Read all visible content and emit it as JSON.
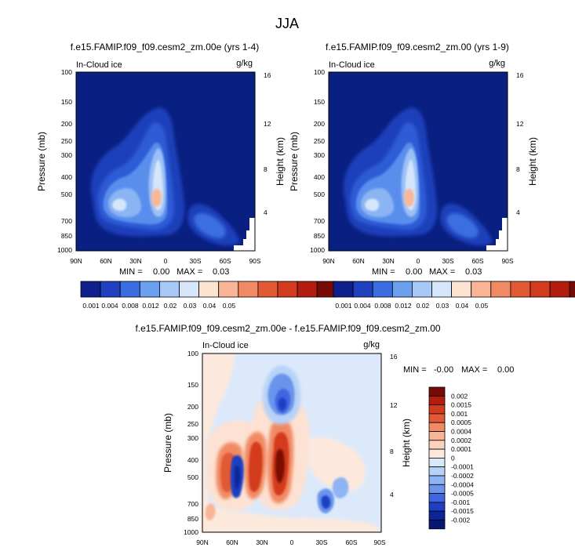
{
  "figure": {
    "title": "JJA"
  },
  "panels": [
    {
      "title": "f.e15.FAMIP.f09_f09.cesm2_zm.00e (yrs 1-4)",
      "field_label": "In-Cloud ice",
      "units": "g/kg",
      "ylabel_left": "Pressure (mb)",
      "ylabel_right": "Height (km)",
      "min_label": "MIN =",
      "min_value": "0.00",
      "max_label": "MAX =",
      "max_value": "0.03"
    },
    {
      "title": "f.e15.FAMIP.f09_f09.cesm2_zm.00 (yrs 1-9)",
      "field_label": "In-Cloud ice",
      "units": "g/kg",
      "ylabel_left": "Pressure (mb)",
      "ylabel_right": "Height (km)",
      "min_label": "MIN =",
      "min_value": "0.00",
      "max_label": "MAX =",
      "max_value": "0.03"
    },
    {
      "title": "f.e15.FAMIP.f09_f09.cesm2_zm.00e - f.e15.FAMIP.f09_f09.cesm2_zm.00",
      "field_label": "In-Cloud ice",
      "units": "g/kg",
      "ylabel_left": "Pressure (mb)",
      "ylabel_right": "Height (km)",
      "min_label": "MIN =",
      "min_value": "-0.00",
      "max_label": "MAX =",
      "max_value": "0.00"
    }
  ],
  "chart_data": [
    {
      "type": "heatmap",
      "title": "f.e15.FAMIP.f09_f09.cesm2_zm.00e (yrs 1-4)",
      "variable": "In-Cloud ice",
      "units": "g/kg",
      "x_ticks": [
        "90N",
        "60N",
        "30N",
        "0",
        "30S",
        "60S",
        "90S"
      ],
      "x_values": [
        90,
        60,
        30,
        0,
        -30,
        -60,
        -90
      ],
      "y_ticks": [
        "100",
        "150",
        "200",
        "250",
        "300",
        "400",
        "500",
        "700",
        "850",
        "1000"
      ],
      "y_values": [
        100,
        150,
        200,
        250,
        300,
        400,
        500,
        700,
        850,
        1000
      ],
      "y_scale": "log",
      "ylim": [
        1000,
        100
      ],
      "y2_ticks": [
        "4",
        "8",
        "12",
        "16"
      ],
      "y2_values": [
        4,
        8,
        12,
        16
      ],
      "xlabel": "",
      "ylabel": "Pressure (mb)",
      "y2label": "Height (km)",
      "min": 0.0,
      "max": 0.03,
      "colorbar_levels": [
        "0.001",
        "0.004",
        "0.008",
        "0.012",
        "0.02",
        "0.03",
        "0.04",
        "0.05"
      ],
      "colorbar_colors": [
        "#0f1f8c",
        "#2040c0",
        "#3a6ee0",
        "#6b9ff0",
        "#a8c8f8",
        "#d6e6fa",
        "#fde4d2",
        "#f9b596",
        "#f08a64",
        "#e25a35",
        "#d33b1f",
        "#b11e10",
        "#7a0a05"
      ]
    },
    {
      "type": "heatmap",
      "title": "f.e15.FAMIP.f09_f09.cesm2_zm.00 (yrs 1-9)",
      "variable": "In-Cloud ice",
      "units": "g/kg",
      "x_ticks": [
        "90N",
        "60N",
        "30N",
        "0",
        "30S",
        "60S",
        "90S"
      ],
      "x_values": [
        90,
        60,
        30,
        0,
        -30,
        -60,
        -90
      ],
      "y_ticks": [
        "100",
        "150",
        "200",
        "250",
        "300",
        "400",
        "500",
        "700",
        "850",
        "1000"
      ],
      "y_values": [
        100,
        150,
        200,
        250,
        300,
        400,
        500,
        700,
        850,
        1000
      ],
      "y_scale": "log",
      "ylim": [
        1000,
        100
      ],
      "y2_ticks": [
        "4",
        "8",
        "12",
        "16"
      ],
      "y2_values": [
        4,
        8,
        12,
        16
      ],
      "xlabel": "",
      "ylabel": "Pressure (mb)",
      "y2label": "Height (km)",
      "min": 0.0,
      "max": 0.03,
      "colorbar_levels": [
        "0.001",
        "0.004",
        "0.008",
        "0.012",
        "0.02",
        "0.03",
        "0.04",
        "0.05"
      ],
      "colorbar_colors": [
        "#0f1f8c",
        "#2040c0",
        "#3a6ee0",
        "#6b9ff0",
        "#a8c8f8",
        "#d6e6fa",
        "#fde4d2",
        "#f9b596",
        "#f08a64",
        "#e25a35",
        "#d33b1f",
        "#b11e10",
        "#7a0a05"
      ]
    },
    {
      "type": "heatmap",
      "title": "f.e15.FAMIP.f09_f09.cesm2_zm.00e - f.e15.FAMIP.f09_f09.cesm2_zm.00",
      "variable": "In-Cloud ice",
      "units": "g/kg",
      "x_ticks": [
        "90N",
        "60N",
        "30N",
        "0",
        "30S",
        "60S",
        "90S"
      ],
      "x_values": [
        90,
        60,
        30,
        0,
        -30,
        -60,
        -90
      ],
      "y_ticks": [
        "100",
        "150",
        "200",
        "250",
        "300",
        "400",
        "500",
        "700",
        "850",
        "1000"
      ],
      "y_values": [
        100,
        150,
        200,
        250,
        300,
        400,
        500,
        700,
        850,
        1000
      ],
      "y_scale": "log",
      "ylim": [
        1000,
        100
      ],
      "y2_ticks": [
        "4",
        "8",
        "12",
        "16"
      ],
      "y2_values": [
        4,
        8,
        12,
        16
      ],
      "xlabel": "",
      "ylabel": "Pressure (mb)",
      "y2label": "Height (km)",
      "min": -0.0,
      "max": 0.0,
      "colorbar_levels": [
        "0.002",
        "0.0015",
        "0.001",
        "0.0005",
        "0.0004",
        "0.0002",
        "0.0001",
        "0",
        "-0.0001",
        "-0.0002",
        "-0.0004",
        "-0.0005",
        "-0.001",
        "-0.0015",
        "-0.002"
      ],
      "colorbar_colors": [
        "#7a0a05",
        "#b11e10",
        "#d33b1f",
        "#e25a35",
        "#f08a64",
        "#f9b596",
        "#fcd2bc",
        "#fde9dc",
        "#d9e8fb",
        "#b7d2f8",
        "#8fb4f3",
        "#6b94ec",
        "#3f66de",
        "#1f3fc3",
        "#0c2599",
        "#071872"
      ]
    }
  ]
}
